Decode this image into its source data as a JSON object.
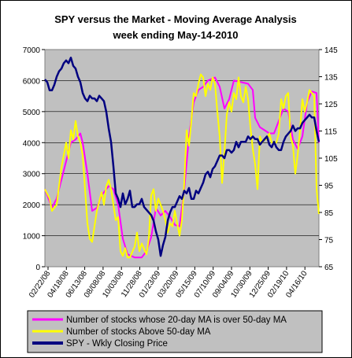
{
  "chart_data": {
    "type": "line",
    "title": "SPY versus the Market - Moving Average Analysis",
    "subtitle": "week ending May-14-2010",
    "x_tick_labels": [
      "02/22/08",
      "04/18/08",
      "06/13/08",
      "08/08/08",
      "10/03/08",
      "11/28/08",
      "01/23/09",
      "03/20/09",
      "05/15/09",
      "07/10/09",
      "09/04/09",
      "10/30/09",
      "12/25/09",
      "02/19/10",
      "04/16/10"
    ],
    "y_left": {
      "min": 0,
      "max": 7000,
      "step": 1000,
      "ticks": [
        "0",
        "1000",
        "2000",
        "3000",
        "4000",
        "5000",
        "6000",
        "7000"
      ]
    },
    "y_right": {
      "min": 65,
      "max": 145,
      "step": 10,
      "ticks": [
        "65",
        "75",
        "85",
        "95",
        "105",
        "115",
        "125",
        "135",
        "145"
      ]
    },
    "grid": true,
    "plot_background": "#c0c0c0",
    "legend": {
      "placement": "bottom"
    },
    "n_weeks": 117,
    "series": [
      {
        "name": "Number of stocks whose 20-day MA is over 50-day MA",
        "axis": "left",
        "color": "#ff00ff",
        "points": [
          [
            0,
            2500
          ],
          [
            3,
            1900
          ],
          [
            5,
            2200
          ],
          [
            8,
            3100
          ],
          [
            11,
            4000
          ],
          [
            13,
            4100
          ],
          [
            15,
            4300
          ],
          [
            16,
            4000
          ],
          [
            18,
            3000
          ],
          [
            20,
            1800
          ],
          [
            22,
            1900
          ],
          [
            24,
            2300
          ],
          [
            27,
            2600
          ],
          [
            29,
            2500
          ],
          [
            31,
            2000
          ],
          [
            33,
            900
          ],
          [
            35,
            400
          ],
          [
            38,
            300
          ],
          [
            41,
            300
          ],
          [
            43,
            500
          ],
          [
            45,
            950
          ],
          [
            47,
            1900
          ],
          [
            49,
            1650
          ],
          [
            51,
            1800
          ],
          [
            53,
            1600
          ],
          [
            55,
            1350
          ],
          [
            57,
            1300
          ],
          [
            59,
            2500
          ],
          [
            61,
            4200
          ],
          [
            63,
            5300
          ],
          [
            65,
            5700
          ],
          [
            67,
            5800
          ],
          [
            69,
            6000
          ],
          [
            72,
            6100
          ],
          [
            74,
            5800
          ],
          [
            76,
            5100
          ],
          [
            78,
            5400
          ],
          [
            80,
            6000
          ],
          [
            83,
            5950
          ],
          [
            86,
            5900
          ],
          [
            88,
            5700
          ],
          [
            89,
            4800
          ],
          [
            91,
            4500
          ],
          [
            93,
            4400
          ],
          [
            95,
            4300
          ],
          [
            97,
            4300
          ],
          [
            99,
            4700
          ],
          [
            101,
            5100
          ],
          [
            103,
            5000
          ],
          [
            105,
            4100
          ],
          [
            107,
            3800
          ],
          [
            109,
            4200
          ],
          [
            111,
            5300
          ],
          [
            113,
            5650
          ],
          [
            115,
            5600
          ],
          [
            116,
            4000
          ]
        ]
      },
      {
        "name": "Number of stocks Above 50-day MA",
        "axis": "left",
        "color": "#ffff00",
        "points": [
          [
            0,
            2500
          ],
          [
            2,
            2200
          ],
          [
            3,
            1800
          ],
          [
            5,
            2000
          ],
          [
            7,
            3200
          ],
          [
            9,
            4000
          ],
          [
            10,
            3500
          ],
          [
            11,
            4400
          ],
          [
            12,
            4100
          ],
          [
            13,
            4700
          ],
          [
            14,
            4200
          ],
          [
            15,
            4000
          ],
          [
            16,
            3600
          ],
          [
            17,
            2500
          ],
          [
            18,
            1400
          ],
          [
            19,
            900
          ],
          [
            20,
            800
          ],
          [
            21,
            1300
          ],
          [
            22,
            1800
          ],
          [
            24,
            2400
          ],
          [
            25,
            2000
          ],
          [
            26,
            2600
          ],
          [
            27,
            2800
          ],
          [
            28,
            2500
          ],
          [
            29,
            2000
          ],
          [
            30,
            1500
          ],
          [
            31,
            1600
          ],
          [
            32,
            500
          ],
          [
            33,
            350
          ],
          [
            34,
            600
          ],
          [
            35,
            300
          ],
          [
            36,
            300
          ],
          [
            38,
            650
          ],
          [
            39,
            1100
          ],
          [
            40,
            500
          ],
          [
            41,
            750
          ],
          [
            43,
            400
          ],
          [
            44,
            900
          ],
          [
            45,
            2300
          ],
          [
            46,
            2500
          ],
          [
            47,
            1800
          ],
          [
            48,
            2200
          ],
          [
            50,
            1800
          ],
          [
            51,
            1500
          ],
          [
            52,
            1100
          ],
          [
            53,
            1400
          ],
          [
            54,
            1300
          ],
          [
            55,
            1800
          ],
          [
            57,
            1000
          ],
          [
            58,
            1500
          ],
          [
            59,
            2700
          ],
          [
            60,
            4400
          ],
          [
            61,
            3900
          ],
          [
            62,
            4700
          ],
          [
            63,
            5600
          ],
          [
            64,
            5500
          ],
          [
            65,
            5900
          ],
          [
            66,
            6200
          ],
          [
            67,
            6100
          ],
          [
            68,
            5500
          ],
          [
            69,
            5900
          ],
          [
            70,
            5700
          ],
          [
            71,
            6100
          ],
          [
            72,
            5900
          ],
          [
            73,
            5000
          ],
          [
            74,
            4200
          ],
          [
            75,
            2700
          ],
          [
            76,
            3700
          ],
          [
            77,
            4900
          ],
          [
            78,
            5300
          ],
          [
            79,
            5000
          ],
          [
            80,
            5600
          ],
          [
            81,
            5400
          ],
          [
            82,
            6100
          ],
          [
            83,
            5500
          ],
          [
            84,
            5300
          ],
          [
            85,
            5800
          ],
          [
            86,
            5400
          ],
          [
            87,
            4500
          ],
          [
            88,
            3800
          ],
          [
            89,
            3300
          ],
          [
            90,
            2500
          ],
          [
            91,
            4200
          ],
          [
            92,
            4000
          ],
          [
            93,
            4100
          ],
          [
            94,
            4100
          ],
          [
            95,
            4300
          ],
          [
            96,
            4000
          ],
          [
            97,
            4000
          ],
          [
            98,
            4000
          ],
          [
            99,
            4300
          ],
          [
            100,
            5400
          ],
          [
            101,
            5100
          ],
          [
            102,
            5500
          ],
          [
            103,
            5600
          ],
          [
            104,
            4200
          ],
          [
            105,
            3900
          ],
          [
            106,
            3000
          ],
          [
            107,
            3600
          ],
          [
            108,
            4400
          ],
          [
            109,
            5400
          ],
          [
            110,
            5000
          ],
          [
            111,
            5300
          ],
          [
            112,
            5700
          ],
          [
            113,
            5600
          ],
          [
            114,
            5500
          ],
          [
            115,
            2500
          ],
          [
            116,
            1700
          ]
        ]
      },
      {
        "name": "SPY - Wkly Closing Price",
        "axis": "right",
        "color": "#000080",
        "points": [
          [
            0,
            134
          ],
          [
            1,
            133
          ],
          [
            2,
            130
          ],
          [
            3,
            130
          ],
          [
            4,
            132
          ],
          [
            5,
            135
          ],
          [
            6,
            137
          ],
          [
            7,
            138
          ],
          [
            8,
            140
          ],
          [
            9,
            141
          ],
          [
            10,
            140
          ],
          [
            11,
            142
          ],
          [
            12,
            139
          ],
          [
            13,
            138
          ],
          [
            14,
            135
          ],
          [
            15,
            133
          ],
          [
            16,
            129
          ],
          [
            17,
            127
          ],
          [
            18,
            126
          ],
          [
            19,
            128
          ],
          [
            20,
            127
          ],
          [
            21,
            127
          ],
          [
            22,
            126
          ],
          [
            23,
            128
          ],
          [
            24,
            127
          ],
          [
            25,
            126
          ],
          [
            26,
            122
          ],
          [
            27,
            116
          ],
          [
            28,
            111
          ],
          [
            29,
            102
          ],
          [
            30,
            92
          ],
          [
            31,
            90
          ],
          [
            32,
            87
          ],
          [
            33,
            92
          ],
          [
            34,
            88
          ],
          [
            35,
            90
          ],
          [
            36,
            93
          ],
          [
            37,
            87
          ],
          [
            38,
            87
          ],
          [
            39,
            88
          ],
          [
            40,
            88
          ],
          [
            41,
            90
          ],
          [
            42,
            87
          ],
          [
            43,
            86
          ],
          [
            44,
            85
          ],
          [
            45,
            84
          ],
          [
            46,
            82
          ],
          [
            47,
            78
          ],
          [
            48,
            75
          ],
          [
            49,
            69
          ],
          [
            50,
            73
          ],
          [
            51,
            76
          ],
          [
            52,
            82
          ],
          [
            53,
            85
          ],
          [
            54,
            87
          ],
          [
            55,
            87
          ],
          [
            56,
            89
          ],
          [
            57,
            91
          ],
          [
            58,
            90
          ],
          [
            59,
            93
          ],
          [
            60,
            92
          ],
          [
            61,
            94
          ],
          [
            62,
            90
          ],
          [
            63,
            90
          ],
          [
            64,
            93
          ],
          [
            65,
            92
          ],
          [
            66,
            94
          ],
          [
            67,
            96
          ],
          [
            68,
            99
          ],
          [
            69,
            100
          ],
          [
            70,
            98
          ],
          [
            71,
            101
          ],
          [
            72,
            102
          ],
          [
            73,
            104
          ],
          [
            74,
            106
          ],
          [
            75,
            106
          ],
          [
            76,
            105
          ],
          [
            77,
            108
          ],
          [
            78,
            108
          ],
          [
            79,
            107
          ],
          [
            80,
            108
          ],
          [
            81,
            111
          ],
          [
            82,
            109
          ],
          [
            83,
            111
          ],
          [
            84,
            111
          ],
          [
            85,
            111
          ],
          [
            86,
            113
          ],
          [
            87,
            112
          ],
          [
            88,
            113
          ],
          [
            89,
            112
          ],
          [
            90,
            112
          ],
          [
            91,
            110
          ],
          [
            92,
            111
          ],
          [
            93,
            112
          ],
          [
            94,
            113
          ],
          [
            95,
            110
          ],
          [
            96,
            109
          ],
          [
            97,
            111
          ],
          [
            98,
            109
          ],
          [
            99,
            108
          ],
          [
            100,
            108
          ],
          [
            101,
            111
          ],
          [
            102,
            113
          ],
          [
            103,
            114
          ],
          [
            104,
            115
          ],
          [
            105,
            117
          ],
          [
            106,
            115
          ],
          [
            107,
            116
          ],
          [
            108,
            116
          ],
          [
            109,
            118
          ],
          [
            110,
            119
          ],
          [
            111,
            120
          ],
          [
            112,
            121
          ],
          [
            113,
            120
          ],
          [
            114,
            120
          ],
          [
            115,
            115
          ],
          [
            116,
            111
          ]
        ]
      }
    ]
  }
}
